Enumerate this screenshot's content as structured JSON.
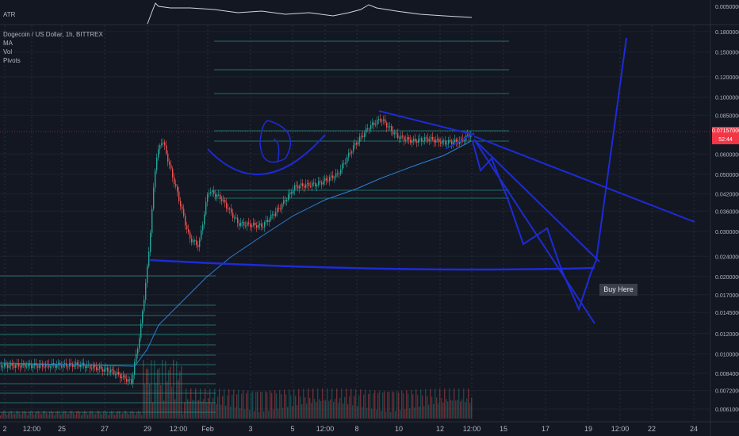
{
  "atr_label": "ATR",
  "symbol_title": "Dogecoin / US Dollar, 1h, BITTREX",
  "indicators": [
    "MA",
    "Vol",
    "Pivots"
  ],
  "last_price": "0.07157000",
  "countdown": "52:44",
  "annotation": "Buy Here",
  "atr_tick": "0.00500000",
  "colors": {
    "background": "#131722",
    "drawing": "#1d2bd8",
    "ma_line": "#2a7fd4",
    "up_candle": "#26a69a",
    "down_candle": "#ef5350",
    "last_price": "#f23645",
    "pivot_lines": "#1f6f6a"
  },
  "chart_data": [
    {
      "type": "line",
      "title": "ATR",
      "series": [
        {
          "name": "ATR",
          "x": [],
          "y": []
        }
      ]
    },
    {
      "type": "candlestick",
      "title": "Dogecoin / US Dollar, 1h, BITTREX",
      "xlabel": "",
      "ylabel": "",
      "x_ticks": [
        "2",
        "12:00",
        "25",
        "27",
        "29",
        "12:00",
        "Feb",
        "3",
        "5",
        "12:00",
        "8",
        "10",
        "12",
        "12:00",
        "15",
        "17",
        "19",
        "12:00",
        "22",
        "24"
      ],
      "y_ticks": [
        "0.18000000",
        "0.15000000",
        "0.12000000",
        "0.10000000",
        "0.08500000",
        "0.06000000",
        "0.05000000",
        "0.04200000",
        "0.03600000",
        "0.03000000",
        "0.02400000",
        "0.02000000",
        "0.01700000",
        "0.01450000",
        "0.01200000",
        "0.01000000",
        "0.00840000",
        "0.00720000",
        "0.00610000"
      ],
      "y_scale": "log",
      "ylim": [
        0.0056,
        0.185
      ],
      "approx_price_path": [
        {
          "x": "late Jan",
          "y": 0.0085
        },
        {
          "x": "28",
          "y": 0.0075
        },
        {
          "x": "29",
          "y": 0.022
        },
        {
          "x": "29 12:00",
          "y": 0.072
        },
        {
          "x": "30",
          "y": 0.033
        },
        {
          "x": "Feb",
          "y": 0.045
        },
        {
          "x": "3",
          "y": 0.037
        },
        {
          "x": "5",
          "y": 0.05
        },
        {
          "x": "7",
          "y": 0.06
        },
        {
          "x": "8",
          "y": 0.08
        },
        {
          "x": "10",
          "y": 0.07
        },
        {
          "x": "12",
          "y": 0.066
        },
        {
          "x": "12:00",
          "y": 0.0716
        }
      ],
      "grid": true
    }
  ]
}
